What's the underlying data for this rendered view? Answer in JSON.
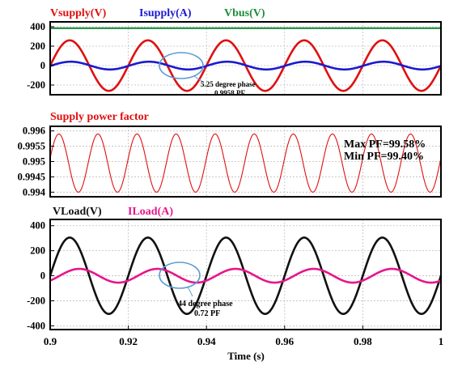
{
  "chart_data": [
    {
      "type": "line",
      "panel": "supply",
      "ylim": [
        -300,
        450
      ],
      "yticks": [
        "400",
        "200",
        "0",
        "-200"
      ],
      "series": [
        {
          "name": "Vsupply(V)",
          "color": "#e01010",
          "amplitude": 260,
          "frequency_hz": 50,
          "phase_deg": 0,
          "offset": 0
        },
        {
          "name": "Isupply(A)",
          "color": "#1a1ad0",
          "amplitude": 40,
          "frequency_hz": 50,
          "phase_deg": -5.25,
          "offset": 0
        },
        {
          "name": "Vbus(V)",
          "color": "#1e8c3c",
          "amplitude": 0,
          "frequency_hz": 50,
          "phase_deg": 0,
          "offset": 385
        }
      ],
      "annotations": [
        "5.25 degree phase",
        "0.9958 PF"
      ]
    },
    {
      "type": "line",
      "panel": "power_factor",
      "title": "Supply power factor",
      "ylim": [
        0.99385,
        0.99615
      ],
      "yticks": [
        "0.996",
        "0.9955",
        "0.995",
        "0.9945",
        "0.994"
      ],
      "series": [
        {
          "name": "",
          "color": "#e01010",
          "mean": 0.99495,
          "amplitude": 0.00095,
          "frequency_hz": 100,
          "phase_deg": 10
        }
      ],
      "annotations": [
        "Max PF=99.58%",
        "Min PF=99.40%"
      ]
    },
    {
      "type": "line",
      "panel": "load",
      "ylim": [
        -430,
        450
      ],
      "yticks": [
        "400",
        "200",
        "0",
        "-200",
        "-400"
      ],
      "xlim": [
        0.9,
        1.0
      ],
      "xticks": [
        "0.9",
        "0.92",
        "0.94",
        "0.96",
        "0.98",
        "1"
      ],
      "xlabel": "Time (s)",
      "series": [
        {
          "name": "VLoad(V)",
          "color": "#111111",
          "amplitude": 305,
          "frequency_hz": 50,
          "phase_deg": 0,
          "offset": 0
        },
        {
          "name": "ILoad(A)",
          "color": "#e6168c",
          "amplitude": 55,
          "frequency_hz": 50,
          "phase_deg": -44,
          "offset": 0
        }
      ],
      "annotations": [
        "44 degree phase",
        "0.72 PF"
      ]
    }
  ],
  "highlight_color": "#5b9bd5"
}
